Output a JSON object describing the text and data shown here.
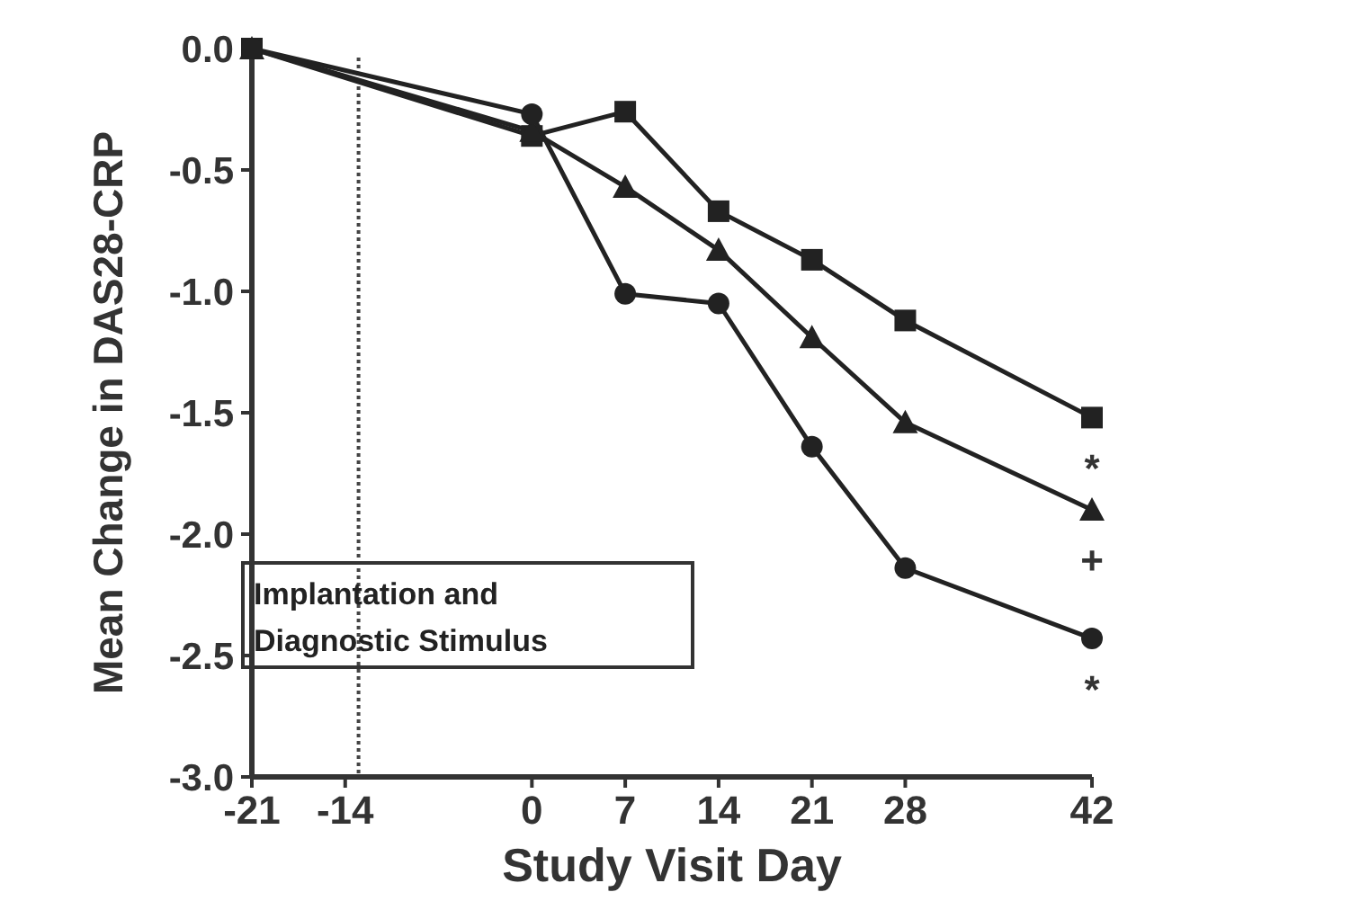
{
  "chart_data": {
    "type": "line",
    "xlabel": "Study Visit Day",
    "ylabel": "Mean Change in DAS28-CRP",
    "xlim": [
      -21,
      42
    ],
    "ylim": [
      -3,
      0
    ],
    "xticks": [
      -21,
      -14,
      0,
      7,
      14,
      21,
      28,
      42
    ],
    "yticks": [
      {
        "value": 0,
        "label": "0.0"
      },
      {
        "value": -0.5,
        "label": "-0.5"
      },
      {
        "value": -1,
        "label": "-1.0"
      },
      {
        "value": -1.5,
        "label": "-1.5"
      },
      {
        "value": -2,
        "label": "-2.0"
      },
      {
        "value": -2.5,
        "label": "-2.5"
      },
      {
        "value": -3,
        "label": "-3.0"
      }
    ],
    "x": [
      -21,
      0,
      7,
      14,
      21,
      28,
      42
    ],
    "series": [
      {
        "color": "#222222",
        "marker": "square",
        "values": [
          0,
          -0.36,
          -0.26,
          -0.67,
          -0.87,
          -1.12,
          -1.52
        ]
      },
      {
        "color": "#222222",
        "marker": "triangle",
        "values": [
          0,
          -0.34,
          -0.57,
          -0.83,
          -1.19,
          -1.54,
          -1.9
        ]
      },
      {
        "color": "#222222",
        "marker": "circle",
        "values": [
          0,
          -0.27,
          -1.01,
          -1.05,
          -1.64,
          -2.14,
          -2.43
        ]
      }
    ],
    "ref_lines": [
      {
        "axis": "x",
        "value": -13,
        "label": "Implantation and Diagnostic Stimulus",
        "line_style": "dotted"
      }
    ],
    "annotations": [
      "*",
      "+",
      "*"
    ]
  }
}
